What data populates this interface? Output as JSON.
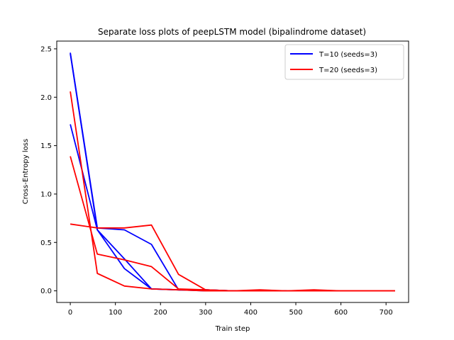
{
  "chart_data": {
    "type": "line",
    "title": "Separate loss plots of peepLSTM model (bipalindrome dataset)",
    "xlabel": "Train step",
    "ylabel": "Cross-Entropy loss",
    "xlim": [
      -30,
      750
    ],
    "ylim": [
      -0.12,
      2.58
    ],
    "xticks": [
      0,
      100,
      200,
      300,
      400,
      500,
      600,
      700
    ],
    "yticks": [
      0.0,
      0.5,
      1.0,
      1.5,
      2.0,
      2.5
    ],
    "ytick_labels": [
      "0.0",
      "0.5",
      "1.0",
      "1.5",
      "2.0",
      "2.5"
    ],
    "grid": false,
    "legend_position": "top-right",
    "legend": [
      {
        "label": "T=10 (seeds=3)",
        "color": "#0000ff"
      },
      {
        "label": "T=20 (seeds=3)",
        "color": "#ff0000"
      }
    ],
    "series": [
      {
        "group": "T=10",
        "color": "#0000ff",
        "points": [
          [
            0,
            2.45
          ],
          [
            60,
            0.63
          ],
          [
            120,
            0.23
          ],
          [
            180,
            0.02
          ],
          [
            240,
            0.01
          ],
          [
            300,
            0.01
          ],
          [
            360,
            0.0
          ],
          [
            420,
            0.0
          ],
          [
            480,
            0.0
          ]
        ]
      },
      {
        "group": "T=10",
        "color": "#0000ff",
        "points": [
          [
            0,
            1.72
          ],
          [
            60,
            0.63
          ],
          [
            120,
            0.33
          ],
          [
            180,
            0.02
          ],
          [
            240,
            0.01
          ],
          [
            300,
            0.0
          ],
          [
            360,
            0.0
          ],
          [
            420,
            0.0
          ],
          [
            480,
            0.0
          ]
        ]
      },
      {
        "group": "T=10",
        "color": "#0000ff",
        "points": [
          [
            0,
            2.46
          ],
          [
            60,
            0.65
          ],
          [
            120,
            0.63
          ],
          [
            180,
            0.48
          ],
          [
            240,
            0.01
          ],
          [
            300,
            0.01
          ],
          [
            360,
            0.0
          ],
          [
            420,
            0.0
          ],
          [
            480,
            0.0
          ]
        ]
      },
      {
        "group": "T=20",
        "color": "#ff0000",
        "points": [
          [
            0,
            2.06
          ],
          [
            60,
            0.18
          ],
          [
            120,
            0.05
          ],
          [
            180,
            0.02
          ],
          [
            240,
            0.01
          ],
          [
            300,
            0.0
          ],
          [
            360,
            0.0
          ],
          [
            420,
            0.0
          ],
          [
            480,
            0.0
          ],
          [
            540,
            0.0
          ],
          [
            600,
            0.0
          ],
          [
            660,
            0.0
          ],
          [
            720,
            0.0
          ]
        ]
      },
      {
        "group": "T=20",
        "color": "#ff0000",
        "points": [
          [
            0,
            1.39
          ],
          [
            60,
            0.38
          ],
          [
            120,
            0.32
          ],
          [
            180,
            0.25
          ],
          [
            240,
            0.02
          ],
          [
            300,
            0.01
          ],
          [
            360,
            0.0
          ],
          [
            420,
            0.01
          ],
          [
            480,
            0.0
          ],
          [
            540,
            0.01
          ],
          [
            600,
            0.0
          ],
          [
            660,
            0.0
          ],
          [
            720,
            0.0
          ]
        ]
      },
      {
        "group": "T=20",
        "color": "#ff0000",
        "points": [
          [
            0,
            0.69
          ],
          [
            60,
            0.65
          ],
          [
            120,
            0.65
          ],
          [
            180,
            0.68
          ],
          [
            240,
            0.17
          ],
          [
            300,
            0.01
          ],
          [
            360,
            0.0
          ],
          [
            420,
            0.0
          ],
          [
            480,
            0.0
          ],
          [
            540,
            0.0
          ],
          [
            600,
            0.0
          ],
          [
            660,
            0.0
          ],
          [
            720,
            0.0
          ]
        ]
      }
    ]
  }
}
